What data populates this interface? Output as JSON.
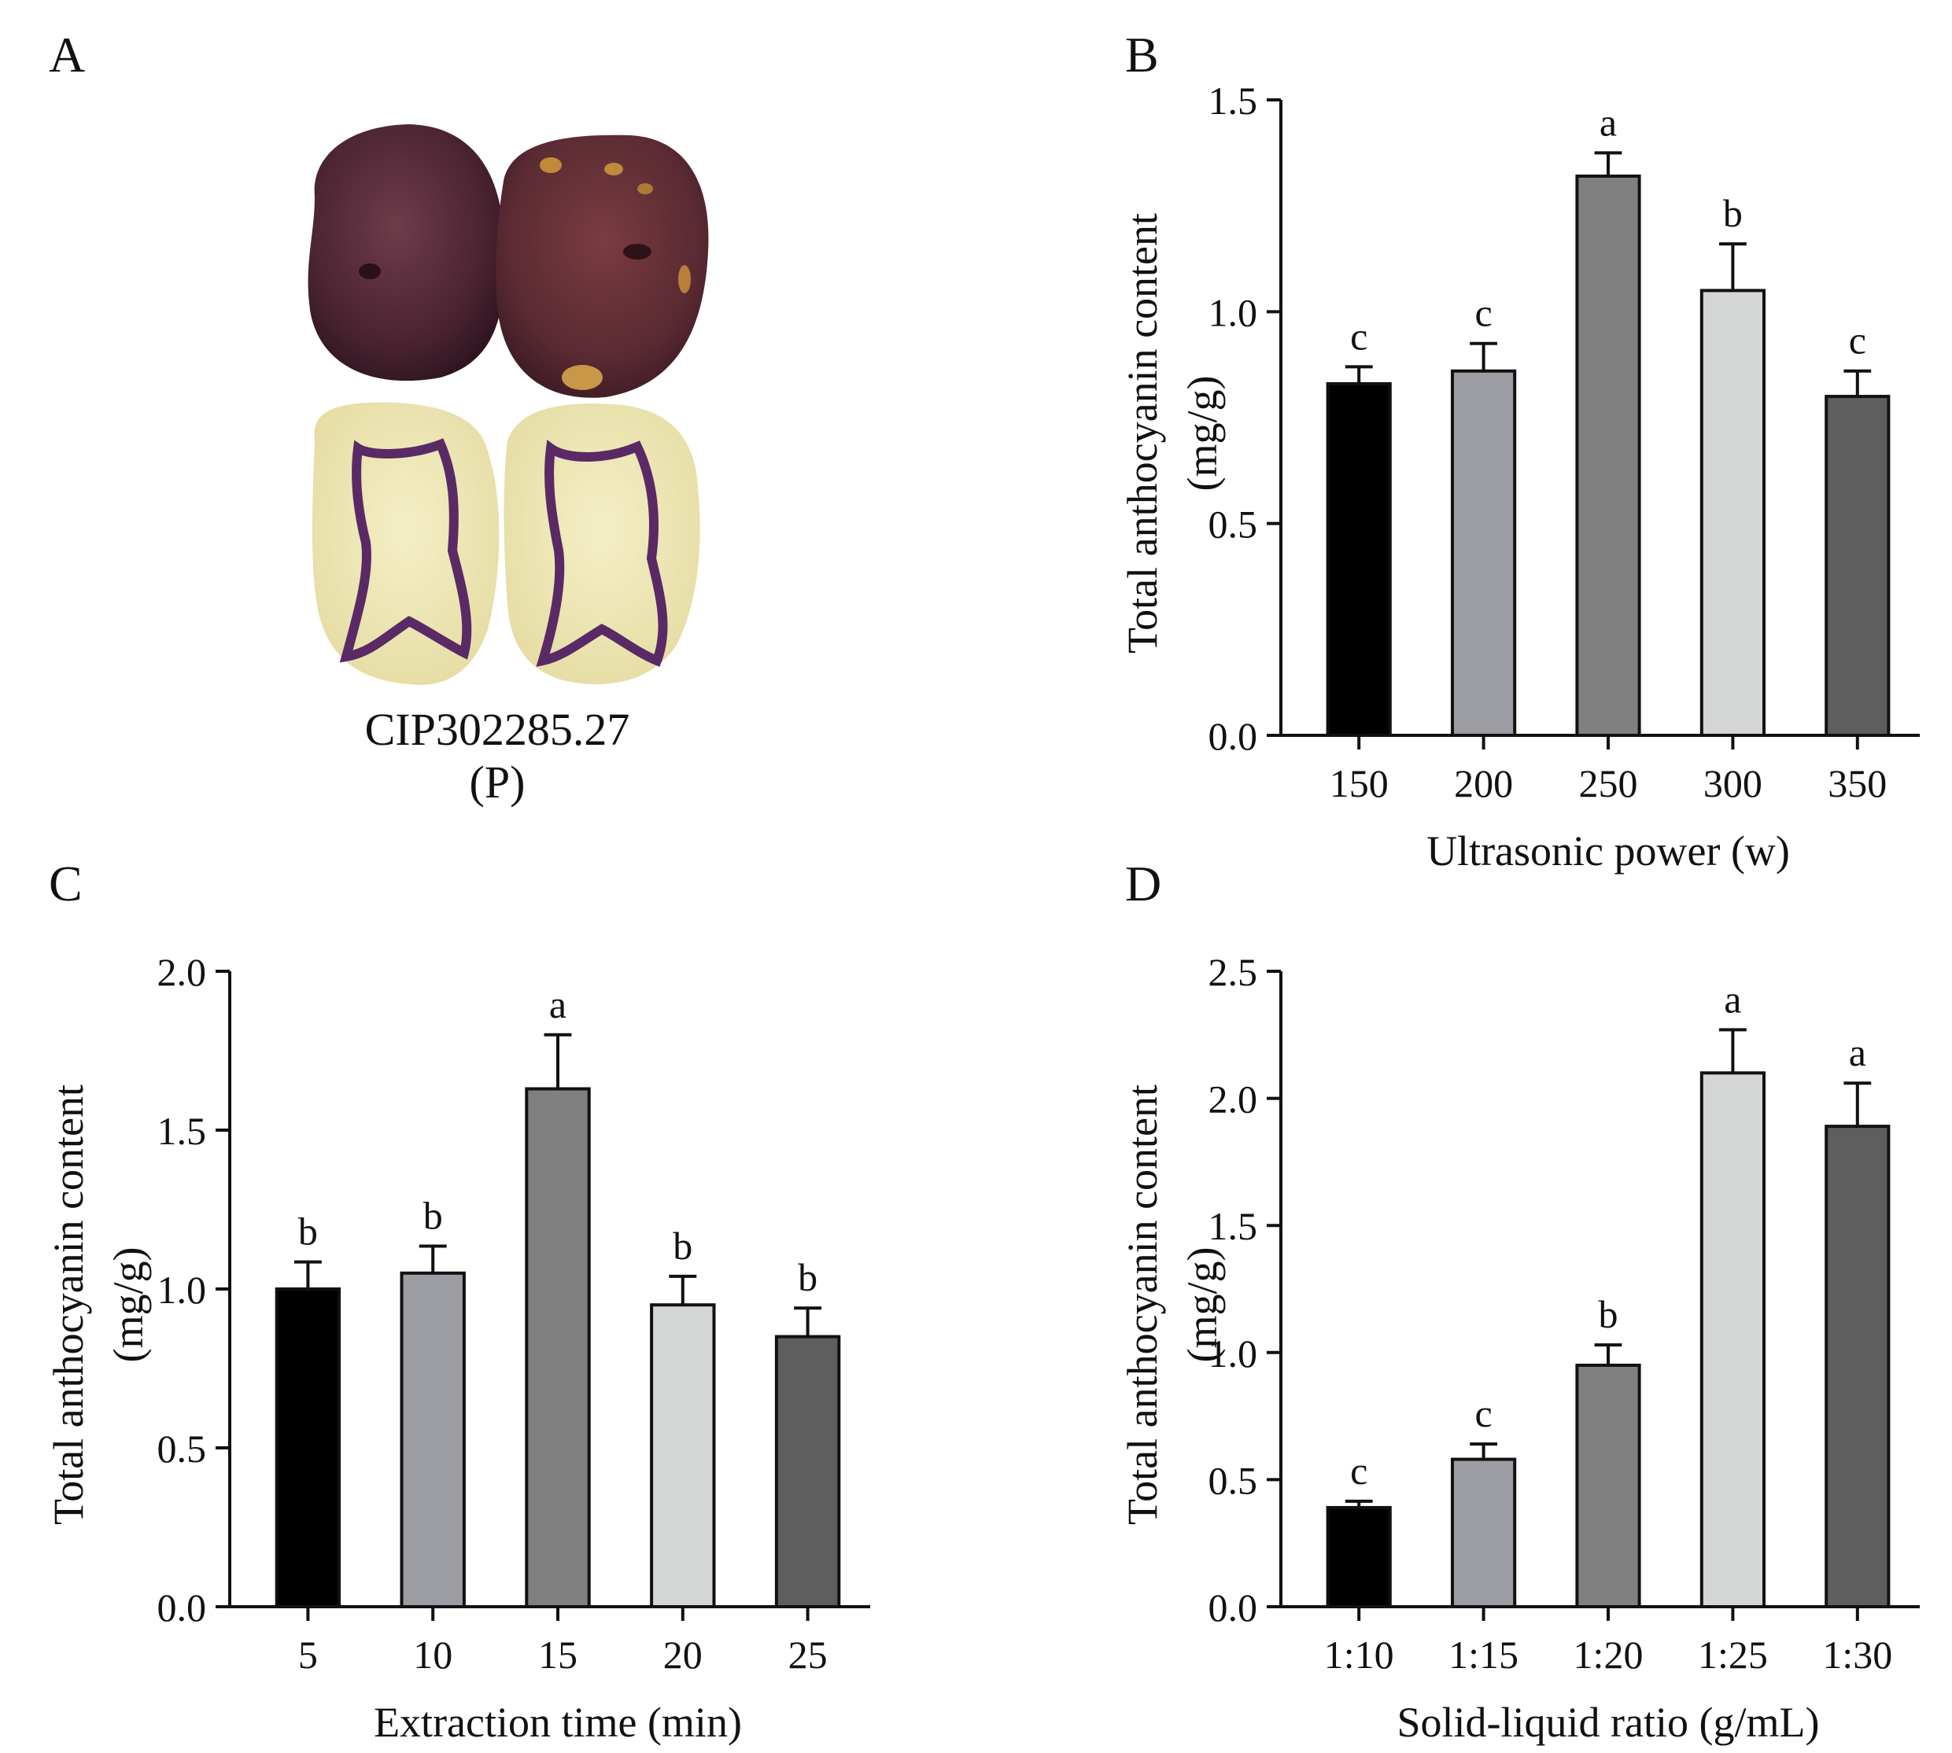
{
  "panels": {
    "A": {
      "letter": "A",
      "caption_line1": "CIP302285.27",
      "caption_line2": "(P)"
    },
    "B": {
      "letter": "B"
    },
    "C": {
      "letter": "C"
    },
    "D": {
      "letter": "D"
    }
  },
  "palette": [
    "#000000",
    "#9c9ca3",
    "#808080",
    "#d4d6d6",
    "#5e5e5e"
  ],
  "chart_data": [
    {
      "id": "B",
      "type": "bar",
      "categories": [
        "150",
        "200",
        "250",
        "300",
        "350"
      ],
      "values": [
        0.83,
        0.86,
        1.32,
        1.05,
        0.8
      ],
      "errors": [
        0.04,
        0.065,
        0.055,
        0.11,
        0.06
      ],
      "letters": [
        "c",
        "c",
        "a",
        "b",
        "c"
      ],
      "xlabel": "Ultrasonic power (w)",
      "ylabel_line1": "Total anthocyanin content",
      "ylabel_line2": "(mg/g)",
      "ylim": [
        0,
        1.5
      ],
      "yticks": [
        0.0,
        0.5,
        1.0,
        1.5
      ],
      "ytick_labels": [
        "0.0",
        "0.5",
        "1.0",
        "1.5"
      ]
    },
    {
      "id": "C",
      "type": "bar",
      "categories": [
        "5",
        "10",
        "15",
        "20",
        "25"
      ],
      "values": [
        1.0,
        1.05,
        1.63,
        0.95,
        0.85
      ],
      "errors": [
        0.085,
        0.085,
        0.17,
        0.09,
        0.09
      ],
      "letters": [
        "b",
        "b",
        "a",
        "b",
        "b"
      ],
      "xlabel": "Extraction time (min)",
      "ylabel_line1": "Total anthocyanin content",
      "ylabel_line2": "(mg/g)",
      "ylim": [
        0,
        2.0
      ],
      "yticks": [
        0.0,
        0.5,
        1.0,
        1.5,
        2.0
      ],
      "ytick_labels": [
        "0.0",
        "0.5",
        "1.0",
        "1.5",
        "2.0"
      ]
    },
    {
      "id": "D",
      "type": "bar",
      "categories": [
        "1:10",
        "1:15",
        "1:20",
        "1:25",
        "1:30"
      ],
      "values": [
        0.39,
        0.58,
        0.95,
        2.1,
        1.89
      ],
      "errors": [
        0.025,
        0.06,
        0.08,
        0.17,
        0.17
      ],
      "letters": [
        "c",
        "c",
        "b",
        "a",
        "a"
      ],
      "xlabel": "Solid-liquid ratio (g/mL)",
      "ylabel_line1": "Total anthocyanin content",
      "ylabel_line2": "(mg/g)",
      "ylim": [
        0,
        2.5
      ],
      "yticks": [
        0.0,
        0.5,
        1.0,
        1.5,
        2.0,
        2.5
      ],
      "ytick_labels": [
        "0.0",
        "0.5",
        "1.0",
        "1.5",
        "2.0",
        "2.5"
      ]
    }
  ]
}
